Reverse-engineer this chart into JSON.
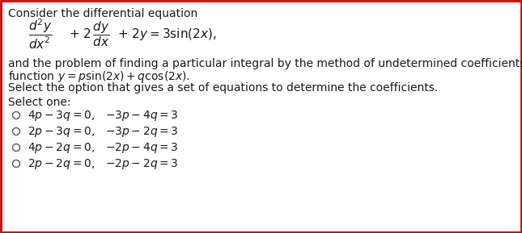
{
  "background_color": "#ffffff",
  "border_color": "#cc0000",
  "border_linewidth": 2,
  "title_text": "Consider the differential equation",
  "body_text1": "and the problem of finding a particular integral by the method of undetermined coefficients using the trial",
  "body_text2": "function $y = p\\sin(2x) + q\\cos(2x)$.",
  "body_text3": "Select the option that gives a set of equations to determine the coefficients.",
  "select_one": "Select one:",
  "options": [
    [
      "$4p - 3q = 0,$",
      "$-3p - 4q = 3$"
    ],
    [
      "$2p - 3q = 0,$",
      "$-3p - 2q = 3$"
    ],
    [
      "$4p - 2q = 0,$",
      "$-2p - 4q = 3$"
    ],
    [
      "$2p - 2q = 0,$",
      "$-2p - 2q = 3$"
    ]
  ],
  "font_size_body": 10,
  "text_color": "#1a1a1a",
  "circle_color": "#555555"
}
